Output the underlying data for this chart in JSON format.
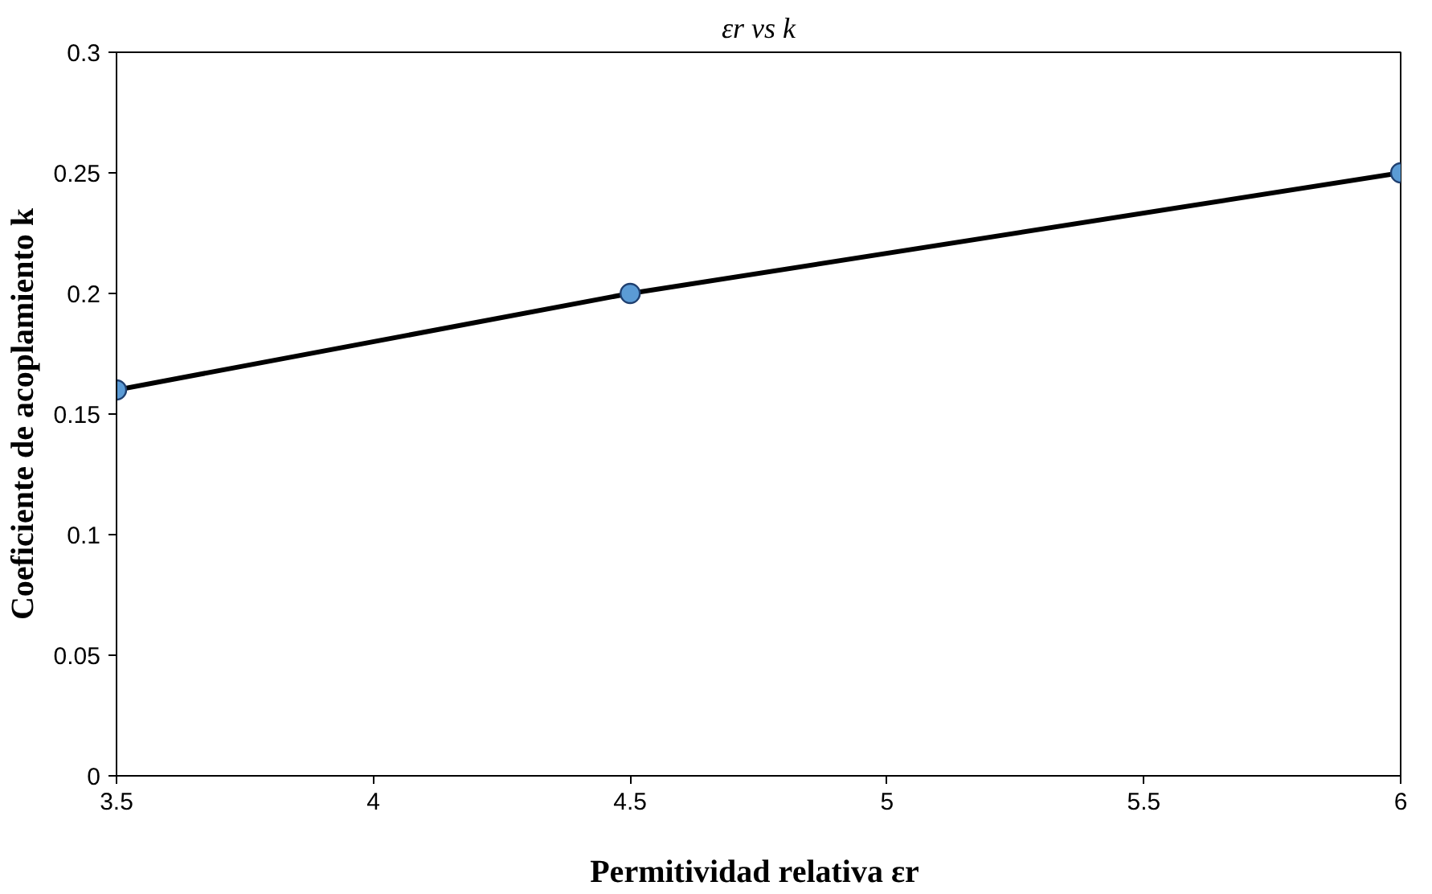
{
  "chart_data": {
    "type": "line",
    "title": "εr vs k",
    "xlabel": "Permitividad relativa  εr",
    "ylabel": "Coeficiente de acoplamiento k",
    "x": [
      3.5,
      4.5,
      6
    ],
    "series": [
      {
        "color": "#000000",
        "colors": [
          "#5b9bd5",
          "#5b9bd5",
          "#5b9bd5"
        ],
        "values": [
          0.16,
          0.2,
          0.25
        ]
      }
    ],
    "xlim": [
      3.5,
      6
    ],
    "xticks": [
      3.5,
      4,
      4.5,
      5,
      5.5,
      6
    ],
    "ylim": [
      0,
      0.3
    ],
    "yticks": [
      0,
      0.05,
      0.1,
      0.15,
      0.2,
      0.25,
      0.3
    ],
    "grid": false,
    "marker": "circle",
    "line_style": "solid"
  }
}
